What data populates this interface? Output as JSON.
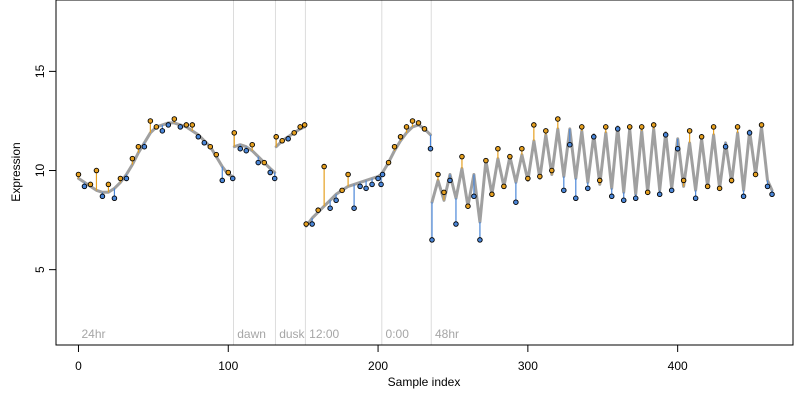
{
  "chart_data": {
    "type": "scatter",
    "title": "",
    "xlabel": "Sample index",
    "ylabel": "Expression",
    "xlim": [
      -15,
      477
    ],
    "ylim": [
      1.2,
      18.6
    ],
    "x_ticks": [
      0,
      100,
      200,
      300,
      400
    ],
    "y_ticks": [
      5,
      10,
      15
    ],
    "grid": false,
    "legend": "none",
    "sections": [
      {
        "label": "24hr",
        "start": 0
      },
      {
        "label": "dawn",
        "start": 104
      },
      {
        "label": "dusk",
        "start": 132
      },
      {
        "label": "12:00",
        "start": 152
      },
      {
        "label": "0:00",
        "start": 203
      },
      {
        "label": "48hr",
        "start": 236
      }
    ],
    "series": [
      {
        "role": "fitted",
        "x": [
          0,
          4,
          8,
          12,
          16,
          20,
          24,
          28,
          32,
          36,
          40,
          44,
          48,
          52,
          56,
          60,
          64,
          68,
          72,
          76,
          80,
          84,
          88,
          92,
          96,
          100,
          103,
          104,
          108,
          112,
          116,
          120,
          124,
          128,
          131,
          132,
          136,
          140,
          144,
          148,
          151,
          152,
          156,
          160,
          164,
          168,
          172,
          176,
          180,
          184,
          188,
          192,
          196,
          200,
          202,
          203,
          207,
          211,
          215,
          219,
          223,
          227,
          231,
          235,
          236,
          240,
          244,
          248,
          252,
          256,
          260,
          264,
          268,
          272,
          276,
          280,
          284,
          288,
          292,
          296,
          300,
          304,
          308,
          312,
          316,
          320,
          324,
          328,
          332,
          336,
          340,
          344,
          348,
          352,
          356,
          360,
          364,
          368,
          372,
          376,
          380,
          384,
          388,
          392,
          396,
          400,
          404,
          408,
          412,
          416,
          420,
          424,
          428,
          432,
          436,
          440,
          444,
          448,
          452,
          456,
          460,
          463
        ],
        "y": [
          9.6,
          9.4,
          9.2,
          9.0,
          8.9,
          8.9,
          9.1,
          9.4,
          9.8,
          10.3,
          10.9,
          11.4,
          11.9,
          12.2,
          12.3,
          12.4,
          12.4,
          12.3,
          12.2,
          12.0,
          11.8,
          11.5,
          11.2,
          10.7,
          10.2,
          9.8,
          9.7,
          11.2,
          11.3,
          11.2,
          11.0,
          10.7,
          10.4,
          10.1,
          9.9,
          11.2,
          11.5,
          11.7,
          11.9,
          12.1,
          12.2,
          7.2,
          7.6,
          7.9,
          8.2,
          8.5,
          8.8,
          9.0,
          9.2,
          9.3,
          9.4,
          9.5,
          9.6,
          9.7,
          9.8,
          9.9,
          10.4,
          11.0,
          11.5,
          11.9,
          12.2,
          12.3,
          12.1,
          11.8,
          8.4,
          9.5,
          8.5,
          9.8,
          8.6,
          10.1,
          8.2,
          9.8,
          7.4,
          10.5,
          8.8,
          10.6,
          9.2,
          10.7,
          9.4,
          10.8,
          9.5,
          11.5,
          9.6,
          11.8,
          9.8,
          12.1,
          9.7,
          12.1,
          9.6,
          12.0,
          9.4,
          11.8,
          9.3,
          11.9,
          9.1,
          12.2,
          8.9,
          12.1,
          8.8,
          12.0,
          8.9,
          12.1,
          9.0,
          11.9,
          9.1,
          11.6,
          9.2,
          11.4,
          9.0,
          11.6,
          9.2,
          11.8,
          9.1,
          11.4,
          9.4,
          11.9,
          9.0,
          12.0,
          9.8,
          12.2,
          9.5,
          9.0
        ]
      },
      {
        "role": "observed",
        "x": [
          0,
          4,
          8,
          12,
          16,
          20,
          24,
          28,
          32,
          36,
          40,
          44,
          48,
          52,
          56,
          60,
          64,
          68,
          72,
          76,
          80,
          84,
          88,
          92,
          96,
          100,
          103,
          104,
          108,
          112,
          116,
          120,
          124,
          128,
          131,
          132,
          136,
          140,
          144,
          148,
          151,
          152,
          156,
          160,
          164,
          168,
          172,
          176,
          180,
          184,
          188,
          192,
          196,
          200,
          202,
          203,
          207,
          211,
          215,
          219,
          223,
          227,
          231,
          235,
          236,
          240,
          244,
          248,
          252,
          256,
          260,
          264,
          268,
          272,
          276,
          280,
          284,
          288,
          292,
          296,
          300,
          304,
          308,
          312,
          316,
          320,
          324,
          328,
          332,
          336,
          340,
          344,
          348,
          352,
          356,
          360,
          364,
          368,
          372,
          376,
          380,
          384,
          388,
          392,
          396,
          400,
          404,
          408,
          412,
          416,
          420,
          424,
          428,
          432,
          436,
          440,
          444,
          448,
          452,
          456,
          460,
          463
        ],
        "y": [
          9.8,
          9.2,
          9.3,
          10.0,
          8.7,
          9.3,
          8.6,
          9.6,
          9.6,
          10.6,
          11.2,
          11.2,
          12.5,
          12.2,
          12.0,
          12.3,
          12.6,
          12.2,
          12.3,
          12.3,
          11.7,
          11.4,
          11.2,
          10.8,
          9.5,
          9.9,
          9.6,
          11.9,
          11.1,
          11.0,
          11.3,
          10.4,
          10.4,
          9.9,
          9.6,
          11.7,
          11.5,
          11.6,
          11.9,
          12.2,
          12.3,
          7.3,
          7.3,
          8.0,
          10.2,
          8.1,
          8.5,
          9.0,
          9.8,
          8.1,
          9.2,
          9.1,
          9.3,
          9.6,
          9.3,
          9.8,
          10.4,
          11.2,
          11.7,
          12.2,
          12.5,
          12.4,
          12.1,
          11.1,
          6.5,
          9.8,
          8.9,
          9.5,
          7.3,
          10.7,
          8.2,
          8.7,
          6.5,
          10.5,
          8.8,
          11.1,
          9.2,
          10.7,
          8.4,
          11.1,
          9.6,
          12.3,
          9.7,
          12.0,
          10.0,
          12.6,
          9.0,
          11.3,
          8.6,
          12.2,
          9.1,
          11.7,
          9.5,
          12.2,
          8.7,
          12.1,
          8.5,
          12.2,
          8.6,
          12.2,
          8.9,
          12.3,
          8.8,
          11.8,
          9.0,
          11.1,
          9.5,
          12.0,
          8.6,
          11.7,
          9.2,
          12.2,
          9.1,
          11.2,
          9.5,
          12.2,
          8.7,
          11.9,
          9.8,
          12.3,
          9.2,
          8.8
        ]
      }
    ]
  }
}
